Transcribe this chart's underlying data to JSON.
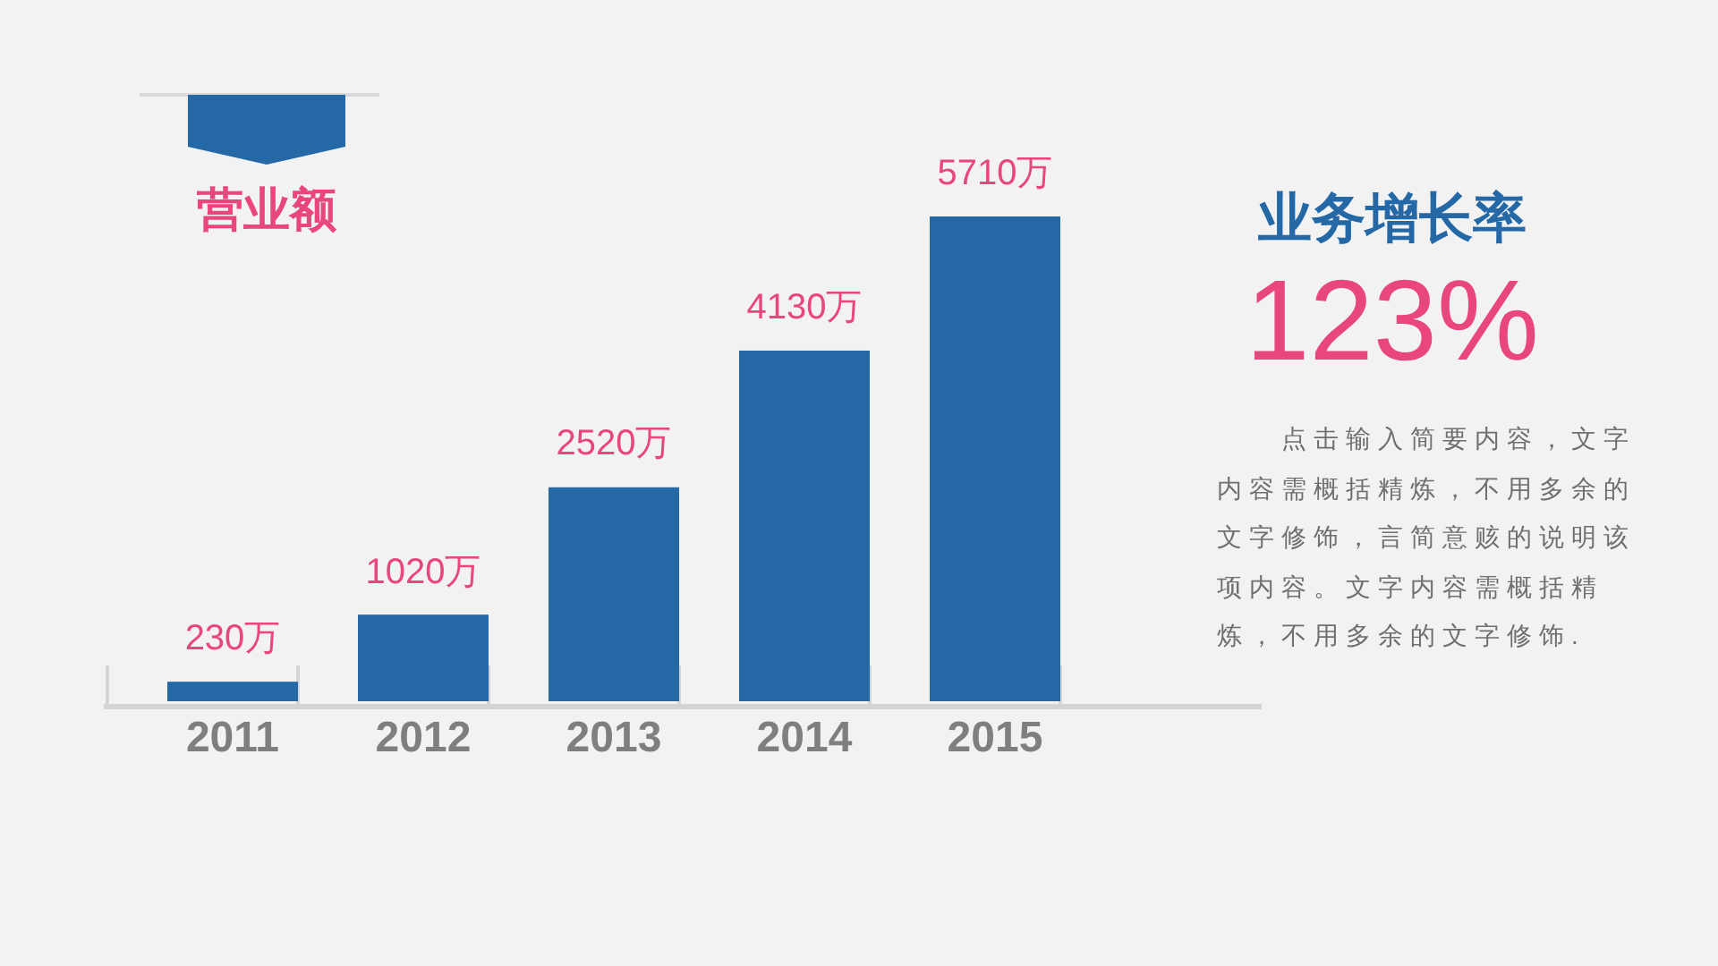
{
  "chart_data": [
    {
      "type": "bar",
      "title": "营业额",
      "categories": [
        "2011",
        "2012",
        "2013",
        "2014",
        "2015"
      ],
      "values": [
        230,
        1020,
        2520,
        4130,
        5710
      ],
      "value_labels": [
        "230万",
        "1020万",
        "2520万",
        "4130万",
        "5710万"
      ],
      "color": "#2468a6",
      "tick_labels": "x"
    },
    {
      "type": "other",
      "title": "业务增长率",
      "subtitle": "123%",
      "annotations": [
        "点击输入简要内容，文字内容需概括精炼，不用多余的文字修饰，言简意赅的说明该项内容。文字内容需概括精炼，不用多余的文字修饰."
      ]
    }
  ]
}
